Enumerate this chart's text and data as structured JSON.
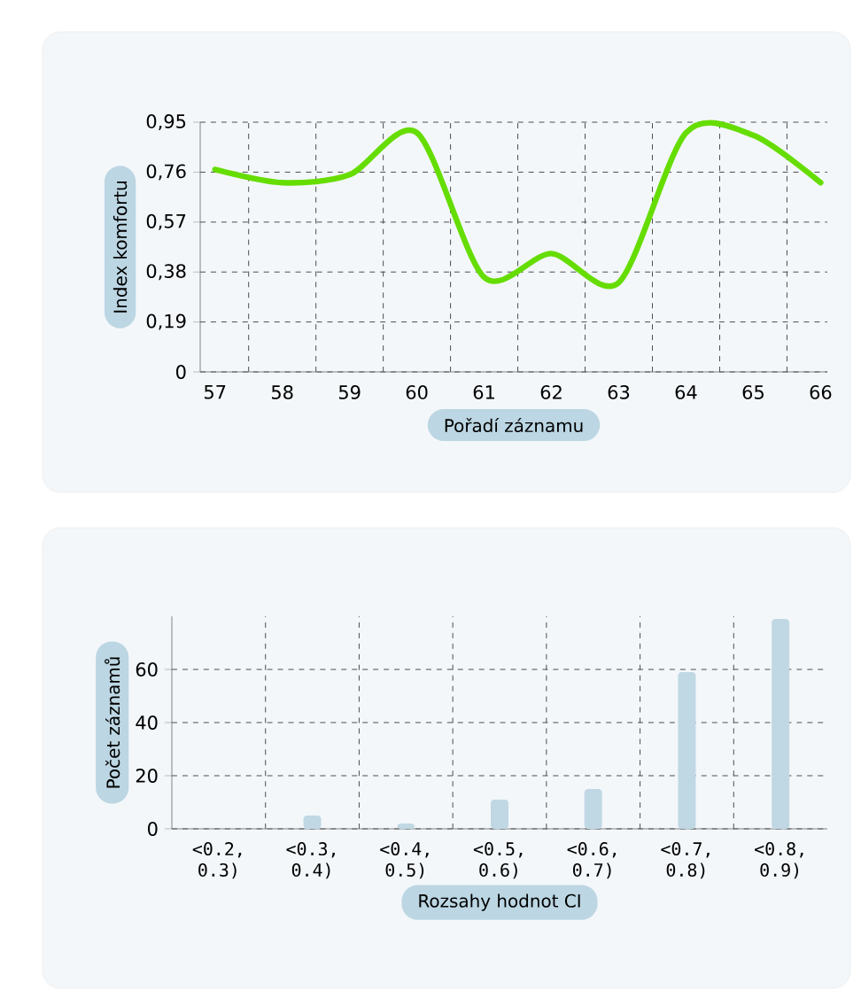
{
  "chart_data": [
    {
      "type": "line",
      "xlabel": "Pořadí záznamu",
      "ylabel": "Index komfortu",
      "x": [
        57,
        58,
        59,
        60,
        61,
        62,
        63,
        64,
        65,
        66
      ],
      "values": [
        0.77,
        0.72,
        0.75,
        0.91,
        0.36,
        0.45,
        0.34,
        0.91,
        0.9,
        0.72
      ],
      "color": "#66dd00",
      "xlim": [
        56.78,
        66.1
      ],
      "xticks": [
        57,
        58,
        59,
        60,
        61,
        62,
        63,
        64,
        65,
        66
      ],
      "ylim": [
        0,
        0.95
      ],
      "yticks": [
        0,
        {
          "value": 0.19,
          "label": "0,19"
        },
        {
          "value": 0.38,
          "label": "0,38"
        },
        {
          "value": 0.57,
          "label": "0,57"
        },
        {
          "value": 0.76,
          "label": "0,76"
        },
        {
          "value": 0.95,
          "label": "0,95"
        }
      ],
      "grid": true
    },
    {
      "type": "bar",
      "xlabel": "Rozsahy hodnot CI",
      "ylabel": "Počet záznamů",
      "categories": [
        "<0.2, 0.3)",
        "<0.3, 0.4)",
        "<0.4, 0.5)",
        "<0.5, 0.6)",
        "<0.6, 0.7)",
        "<0.7, 0.8)",
        "<0.8, 0.9)"
      ],
      "values": [
        null,
        5,
        2,
        11,
        15,
        59,
        79
      ],
      "color": "#c0d8e4",
      "ylim": [
        0,
        80
      ],
      "yticks": [
        0,
        20,
        40,
        60
      ],
      "grid": true
    }
  ]
}
